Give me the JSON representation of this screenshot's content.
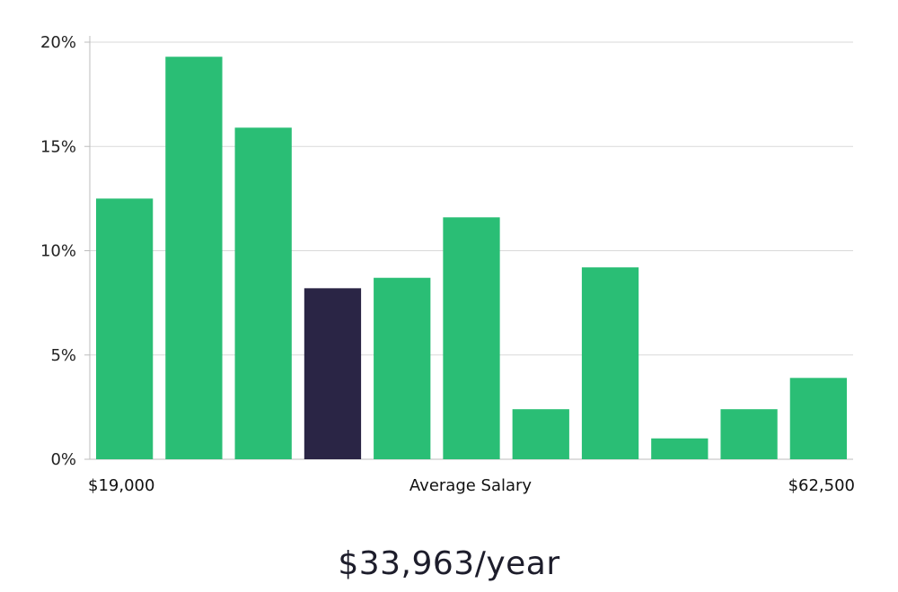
{
  "colors": {
    "bar": "#2abe75",
    "highlight": "#2a2545",
    "grid": "#d9d9d9",
    "axis": "#bdbdbd"
  },
  "chart_data": {
    "type": "bar",
    "title": "",
    "xlabel": "Average Salary",
    "ylabel": "",
    "x_min_label": "$19,000",
    "x_max_label": "$62,500",
    "y_ticks": [
      "0%",
      "5%",
      "10%",
      "15%",
      "20%"
    ],
    "ylim": [
      0,
      20
    ],
    "values": [
      12.5,
      19.3,
      15.9,
      8.2,
      8.7,
      11.6,
      2.4,
      9.2,
      1.0,
      2.4,
      3.9
    ],
    "highlight_index": 3
  },
  "summary": {
    "salary": "$33,963/year"
  }
}
